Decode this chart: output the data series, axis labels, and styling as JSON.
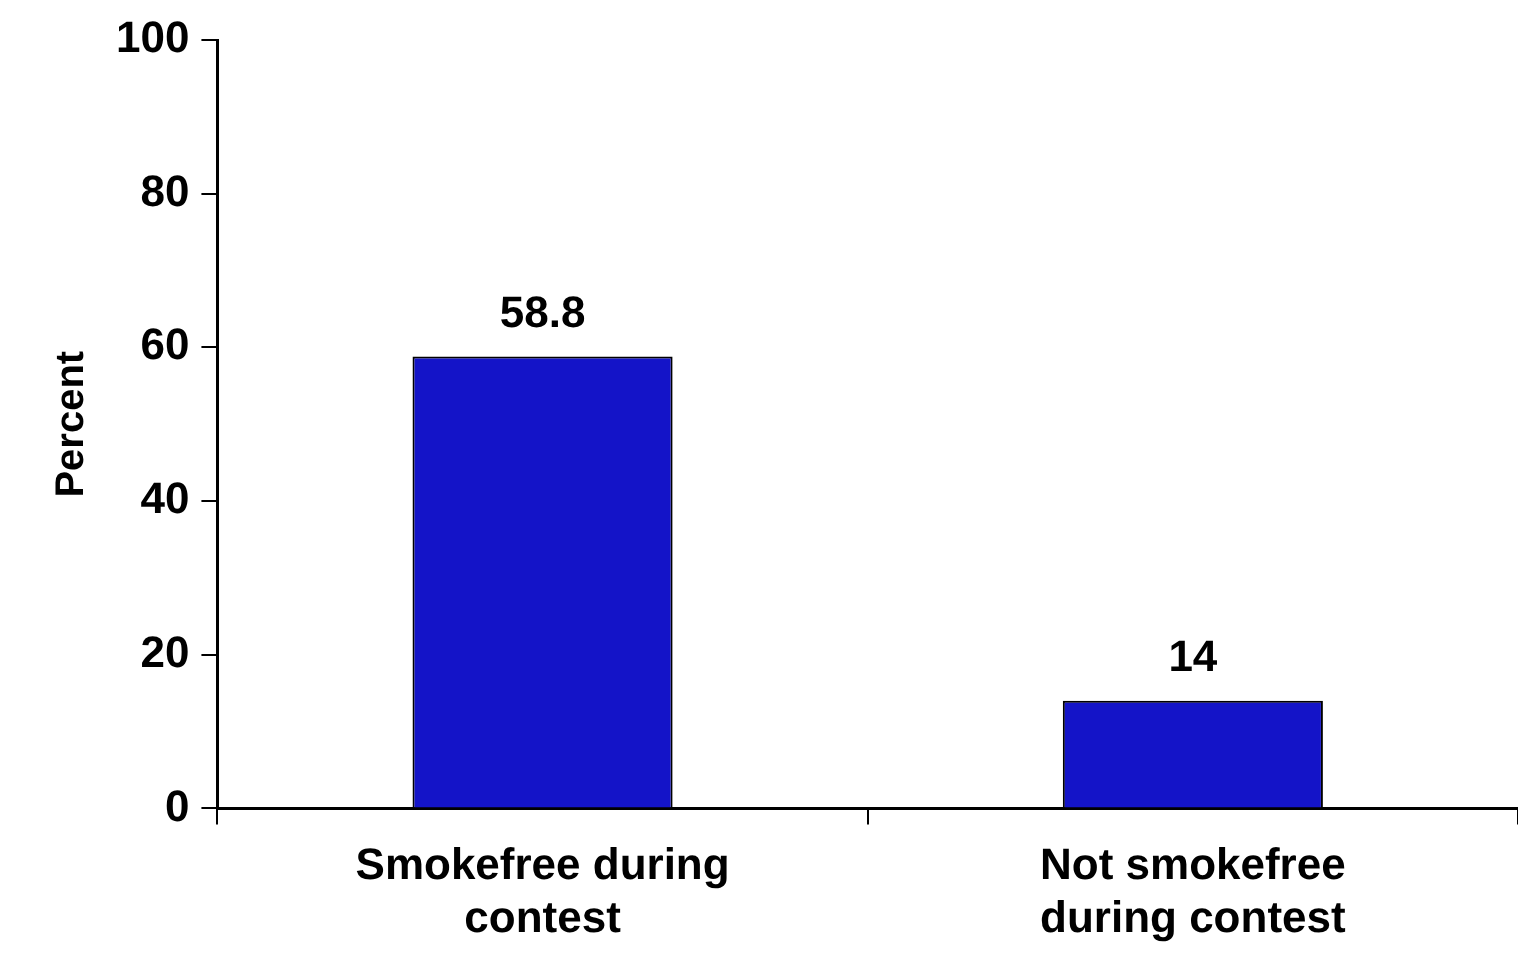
{
  "chart_data": {
    "type": "bar",
    "categories": [
      "Smokefree during contest",
      "Not smokefree during contest"
    ],
    "values": [
      58.8,
      14
    ],
    "color": "#1414c8",
    "ylabel": "Percent",
    "ylim": [
      0,
      100
    ],
    "yticks": [
      0,
      20,
      40,
      60,
      80,
      100
    ],
    "grid": false,
    "legend": false,
    "data_labels": true
  }
}
